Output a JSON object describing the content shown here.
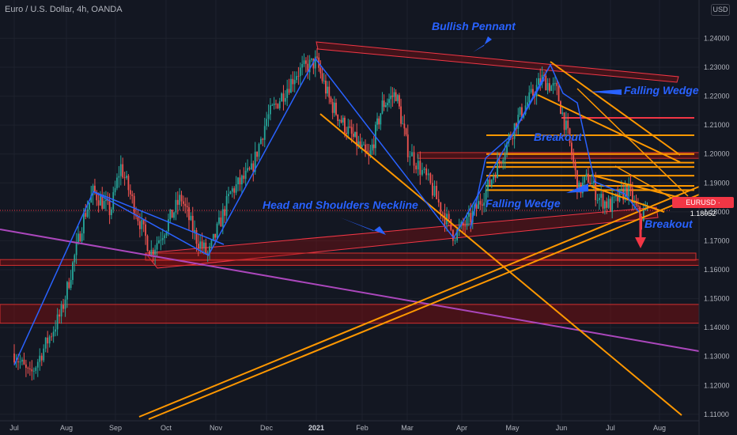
{
  "header": {
    "symbol_line": "Euro / U.S. Dollar, 4h, OANDA",
    "currency_badge": "USD"
  },
  "price_tag": {
    "label": "EURUSD · 1.18052",
    "color": "#f23645"
  },
  "annotations": {
    "bullish_pennant": "Bullish Pennant",
    "falling_wedge_1": "Falling Wedge",
    "breakout_1": "Breakout",
    "head_shoulders": "Head and Shoulders Neckline",
    "falling_wedge_2": "Falling Wedge",
    "breakout_2": "Breakout"
  },
  "colors": {
    "up": "#26a69a",
    "down": "#ef5350",
    "annotation": "#2962ff",
    "trend": "#ff9800",
    "pennant": "#f23645",
    "long_trend": "#ab47bc",
    "zigzag": "#2962ff"
  },
  "chart_data": {
    "type": "line",
    "series_type": "candlestick",
    "instrument": "EURUSD",
    "timeframe": "4h",
    "x_tick_labels": [
      "Jul",
      "Aug",
      "Sep",
      "Oct",
      "Nov",
      "Dec",
      "2021",
      "Feb",
      "Mar",
      "Apr",
      "May",
      "Jun",
      "Jul",
      "Aug"
    ],
    "y_tick_labels": [
      "1.24000",
      "1.23000",
      "1.22000",
      "1.21000",
      "1.20000",
      "1.19000",
      "1.18000",
      "1.17000",
      "1.16000",
      "1.15000",
      "1.14000",
      "1.13000",
      "1.12000",
      "1.11000"
    ],
    "ylim": [
      1.1075,
      1.2475
    ],
    "last_price": 1.18052,
    "price_path": [
      {
        "t": 0.0,
        "p": 1.131
      },
      {
        "t": 0.3,
        "p": 1.123
      },
      {
        "t": 0.9,
        "p": 1.145
      },
      {
        "t": 1.35,
        "p": 1.178
      },
      {
        "t": 1.55,
        "p": 1.187
      },
      {
        "t": 1.9,
        "p": 1.18
      },
      {
        "t": 2.1,
        "p": 1.196
      },
      {
        "t": 2.35,
        "p": 1.183
      },
      {
        "t": 2.7,
        "p": 1.166
      },
      {
        "t": 3.0,
        "p": 1.175
      },
      {
        "t": 3.3,
        "p": 1.185
      },
      {
        "t": 3.6,
        "p": 1.171
      },
      {
        "t": 3.85,
        "p": 1.165
      },
      {
        "t": 4.3,
        "p": 1.187
      },
      {
        "t": 4.7,
        "p": 1.194
      },
      {
        "t": 5.0,
        "p": 1.212
      },
      {
        "t": 5.6,
        "p": 1.228
      },
      {
        "t": 6.0,
        "p": 1.232
      },
      {
        "t": 6.3,
        "p": 1.218
      },
      {
        "t": 6.6,
        "p": 1.21
      },
      {
        "t": 7.15,
        "p": 1.198
      },
      {
        "t": 7.45,
        "p": 1.217
      },
      {
        "t": 7.75,
        "p": 1.221
      },
      {
        "t": 8.0,
        "p": 1.202
      },
      {
        "t": 8.4,
        "p": 1.19
      },
      {
        "t": 8.85,
        "p": 1.172
      },
      {
        "t": 9.15,
        "p": 1.177
      },
      {
        "t": 9.5,
        "p": 1.188
      },
      {
        "t": 10.1,
        "p": 1.212
      },
      {
        "t": 10.6,
        "p": 1.226
      },
      {
        "t": 10.9,
        "p": 1.222
      },
      {
        "t": 11.15,
        "p": 1.205
      },
      {
        "t": 11.35,
        "p": 1.187
      },
      {
        "t": 11.55,
        "p": 1.192
      },
      {
        "t": 11.75,
        "p": 1.185
      },
      {
        "t": 12.0,
        "p": 1.182
      },
      {
        "t": 12.35,
        "p": 1.188
      },
      {
        "t": 12.6,
        "p": 1.178
      },
      {
        "t": 12.75,
        "p": 1.1805
      }
    ],
    "zigzag": [
      {
        "t": 0.0,
        "p": 1.127
      },
      {
        "t": 1.55,
        "p": 1.187
      },
      {
        "t": 3.85,
        "p": 1.165
      },
      {
        "t": 5.98,
        "p": 1.233
      },
      {
        "t": 8.85,
        "p": 1.171
      },
      {
        "t": 10.65,
        "p": 1.226
      }
    ],
    "horizontal_levels": [
      1.2125,
      1.2065,
      1.2,
      1.197,
      1.1955,
      1.1925,
      1.189,
      1.1875
    ],
    "zones": [
      {
        "from": 1.1615,
        "to": 1.1635
      },
      {
        "from": 1.1415,
        "to": 1.148
      },
      {
        "from": 1.1985,
        "to": 1.2005
      }
    ]
  }
}
